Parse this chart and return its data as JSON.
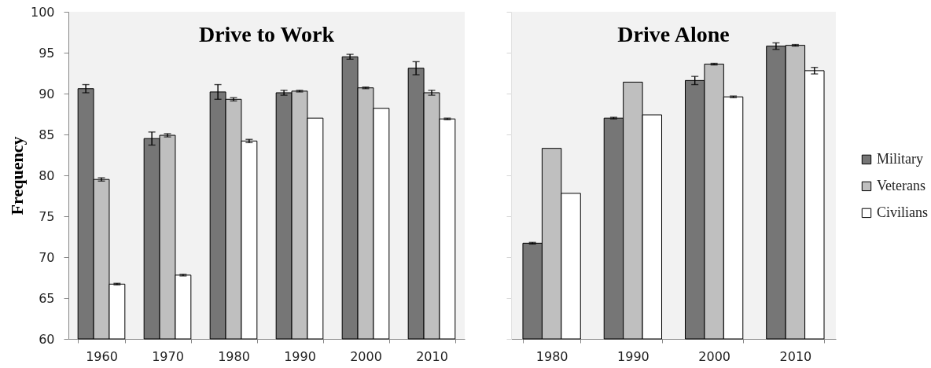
{
  "chart_data": [
    {
      "type": "bar",
      "title": "Drive to Work",
      "ylabel": "Frequency",
      "categories": [
        "1960",
        "1970",
        "1980",
        "1990",
        "2000",
        "2010"
      ],
      "series": [
        {
          "color": "#767676",
          "values": [
            90.6,
            84.5,
            90.2,
            90.1,
            94.5,
            93.1
          ],
          "errors": [
            0.5,
            0.8,
            0.9,
            0.3,
            0.3,
            0.8
          ]
        },
        {
          "color": "#bfbfbf",
          "values": [
            79.5,
            84.9,
            89.3,
            90.3,
            90.7,
            90.1
          ],
          "errors": [
            0.2,
            0.2,
            0.2,
            0.1,
            0.1,
            0.3
          ]
        },
        {
          "color": "#ffffff",
          "values": [
            66.7,
            67.8,
            84.2,
            87.0,
            88.2,
            86.9
          ],
          "errors": [
            0.1,
            0.1,
            0.2,
            null,
            null,
            0.1
          ]
        }
      ],
      "ylim": [
        60,
        100
      ],
      "yticks": [
        60,
        65,
        70,
        75,
        80,
        85,
        90,
        95,
        100
      ]
    },
    {
      "type": "bar",
      "title": "Drive Alone",
      "categories": [
        "1980",
        "1990",
        "2000",
        "2010"
      ],
      "series": [
        {
          "name": "Military",
          "color": "#767676",
          "values": [
            71.7,
            87.0,
            91.6,
            95.8
          ],
          "errors": [
            0.1,
            0.1,
            0.5,
            0.4
          ]
        },
        {
          "name": "Veterans",
          "color": "#bfbfbf",
          "values": [
            83.3,
            91.4,
            93.6,
            95.9
          ],
          "errors": [
            null,
            null,
            0.1,
            0.1
          ]
        },
        {
          "name": "Civilians",
          "color": "#ffffff",
          "values": [
            77.8,
            87.4,
            89.6,
            92.8
          ],
          "errors": [
            null,
            null,
            0.1,
            0.4
          ]
        }
      ],
      "ylim": [
        60,
        100
      ],
      "yticks": [
        60,
        65,
        70,
        75,
        80,
        85,
        90,
        95,
        100
      ],
      "tick_labels": "x",
      "legend": "right"
    }
  ]
}
